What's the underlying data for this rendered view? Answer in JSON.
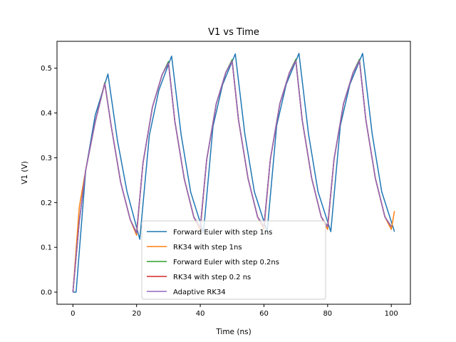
{
  "chart_data": {
    "type": "line",
    "title": "V1 vs Time",
    "xlabel": "Time (ns)",
    "ylabel": "V1 (V)",
    "xlim": [
      -5,
      106
    ],
    "ylim": [
      -0.027,
      0.56
    ],
    "xticks": [
      0,
      20,
      40,
      60,
      80,
      100
    ],
    "yticks": [
      0.0,
      0.1,
      0.2,
      0.3,
      0.4,
      0.5
    ],
    "xtick_labels": [
      "0",
      "20",
      "40",
      "60",
      "80",
      "100"
    ],
    "ytick_labels": [
      "0.0",
      "0.1",
      "0.2",
      "0.3",
      "0.4",
      "0.5"
    ],
    "grid": false,
    "legend_position": "lower center",
    "series": [
      {
        "name": "Forward Euler with step 1ns",
        "color": "#1f77b4",
        "x": [
          0,
          1,
          4,
          7,
          11,
          14,
          17,
          21,
          24,
          27,
          31,
          34,
          37,
          41,
          44,
          47,
          51,
          54,
          57,
          61,
          64,
          67,
          71,
          74,
          77,
          81,
          84,
          87,
          91,
          94,
          97,
          101
        ],
        "y": [
          0.0,
          0.0,
          0.271,
          0.395,
          0.487,
          0.338,
          0.224,
          0.118,
          0.35,
          0.451,
          0.527,
          0.351,
          0.223,
          0.133,
          0.37,
          0.463,
          0.532,
          0.353,
          0.224,
          0.135,
          0.372,
          0.464,
          0.533,
          0.353,
          0.224,
          0.135,
          0.372,
          0.464,
          0.533,
          0.353,
          0.224,
          0.135
        ]
      },
      {
        "name": "RK34 with step 1ns",
        "color": "#ff7f0e",
        "x": [
          0,
          2,
          4,
          7,
          10,
          12,
          15,
          18,
          20,
          22,
          25,
          28,
          30,
          32,
          35,
          38,
          40,
          42,
          45,
          48,
          50,
          52,
          55,
          58,
          60,
          62,
          65,
          68,
          70,
          72,
          75,
          78,
          80,
          82,
          85,
          88,
          90,
          92,
          95,
          98,
          100,
          101
        ],
        "y": [
          0.0,
          0.19,
          0.272,
          0.38,
          0.467,
          0.372,
          0.245,
          0.162,
          0.127,
          0.288,
          0.414,
          0.485,
          0.513,
          0.382,
          0.252,
          0.167,
          0.138,
          0.295,
          0.42,
          0.49,
          0.517,
          0.385,
          0.254,
          0.168,
          0.14,
          0.296,
          0.421,
          0.49,
          0.518,
          0.385,
          0.254,
          0.168,
          0.14,
          0.296,
          0.421,
          0.49,
          0.518,
          0.385,
          0.254,
          0.168,
          0.14,
          0.181
        ]
      },
      {
        "name": "Forward Euler with step 0.2ns",
        "color": "#2ca02c",
        "x": [
          0,
          2,
          4,
          7,
          10,
          12,
          15,
          18,
          20,
          22,
          25,
          28,
          30,
          32,
          35,
          38,
          40,
          42,
          45,
          48,
          50,
          52,
          55,
          58,
          60,
          62,
          65,
          68,
          70,
          72,
          75,
          78,
          80,
          82,
          85,
          88,
          90,
          92,
          95,
          98,
          100
        ],
        "y": [
          0.0,
          0.158,
          0.272,
          0.38,
          0.468,
          0.372,
          0.245,
          0.162,
          0.133,
          0.288,
          0.414,
          0.485,
          0.515,
          0.382,
          0.252,
          0.167,
          0.145,
          0.295,
          0.42,
          0.49,
          0.519,
          0.385,
          0.254,
          0.168,
          0.147,
          0.296,
          0.421,
          0.49,
          0.52,
          0.385,
          0.254,
          0.168,
          0.147,
          0.296,
          0.421,
          0.49,
          0.52,
          0.385,
          0.254,
          0.168,
          0.147
        ]
      },
      {
        "name": "RK34 with step 0.2 ns",
        "color": "#d62728",
        "x": [
          0,
          2,
          4,
          7,
          10,
          12,
          15,
          18,
          20,
          22,
          25,
          28,
          30,
          32,
          35,
          38,
          40,
          42,
          45,
          48,
          50,
          52,
          55,
          58,
          60,
          62,
          65,
          68,
          70,
          72,
          75,
          78,
          80,
          82,
          85,
          88,
          90,
          92,
          95,
          98,
          100
        ],
        "y": [
          0.0,
          0.158,
          0.272,
          0.38,
          0.466,
          0.372,
          0.245,
          0.162,
          0.132,
          0.288,
          0.414,
          0.485,
          0.512,
          0.382,
          0.252,
          0.167,
          0.144,
          0.295,
          0.42,
          0.49,
          0.516,
          0.385,
          0.254,
          0.168,
          0.146,
          0.296,
          0.421,
          0.49,
          0.517,
          0.385,
          0.254,
          0.168,
          0.146,
          0.296,
          0.421,
          0.49,
          0.517,
          0.385,
          0.254,
          0.168,
          0.146
        ]
      },
      {
        "name": "Adaptive RK34",
        "color": "#9467bd",
        "x": [
          0,
          2,
          4,
          7,
          10,
          12,
          15,
          18,
          20,
          22,
          25,
          28,
          30,
          32,
          35,
          38,
          40,
          42,
          45,
          48,
          50,
          52,
          55,
          58,
          60,
          62,
          65,
          68,
          70,
          72,
          75,
          78,
          80,
          82,
          85,
          88,
          90,
          92,
          95,
          98,
          100
        ],
        "y": [
          0.0,
          0.158,
          0.272,
          0.38,
          0.466,
          0.372,
          0.245,
          0.162,
          0.132,
          0.288,
          0.414,
          0.485,
          0.512,
          0.382,
          0.252,
          0.167,
          0.144,
          0.295,
          0.42,
          0.49,
          0.516,
          0.385,
          0.254,
          0.168,
          0.146,
          0.296,
          0.421,
          0.49,
          0.517,
          0.385,
          0.254,
          0.168,
          0.146,
          0.296,
          0.421,
          0.49,
          0.517,
          0.385,
          0.254,
          0.168,
          0.146
        ]
      }
    ]
  }
}
